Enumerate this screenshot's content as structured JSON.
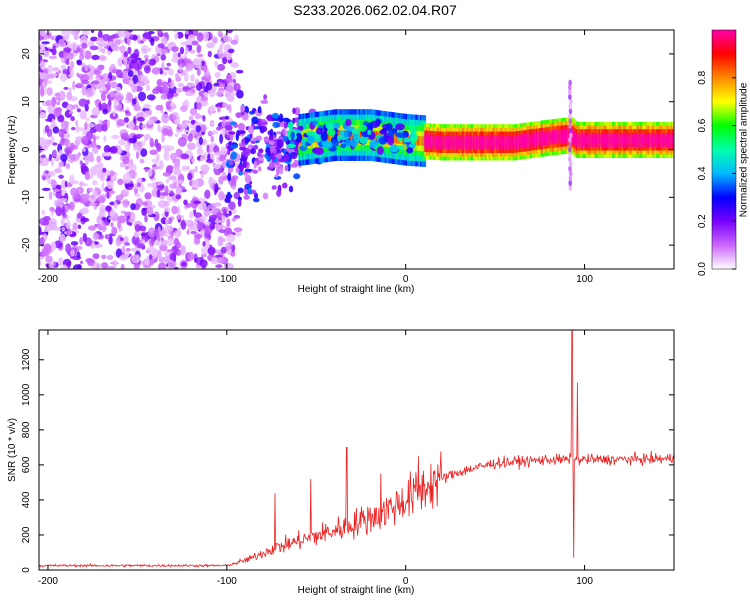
{
  "title": "S233.2026.062.02.04.R07",
  "chart_data": [
    {
      "type": "heatmap",
      "name": "spectrogram",
      "xlabel": "Height of straight line (km)",
      "ylabel": "Frequency (Hz)",
      "xlim": [
        -205,
        150
      ],
      "ylim": [
        -25,
        25
      ],
      "xticks": [
        -200,
        -100,
        0,
        100
      ],
      "yticks": [
        -20,
        -10,
        0,
        10,
        20
      ],
      "colorbar": {
        "label": "Normalized spectral amplitude",
        "range": [
          0.0,
          1.0
        ],
        "ticks": [
          0.0,
          0.2,
          0.4,
          0.6,
          0.8
        ],
        "tick_labels": [
          "0.0",
          "0.2",
          "0.4",
          "0.6",
          "0.8"
        ],
        "colors": [
          "#ffffff",
          "#cc66ff",
          "#7700ff",
          "#0000ff",
          "#00bbff",
          "#00ffaa",
          "#00ff00",
          "#ffff00",
          "#ff8800",
          "#ff0000",
          "#ff00aa"
        ]
      },
      "band_centerline": [
        {
          "x": -85,
          "freq": 0
        },
        {
          "x": -60,
          "freq": 2
        },
        {
          "x": -40,
          "freq": 3
        },
        {
          "x": -20,
          "freq": 3
        },
        {
          "x": 0,
          "freq": 2
        },
        {
          "x": 20,
          "freq": 1.5
        },
        {
          "x": 60,
          "freq": 1.5
        },
        {
          "x": 80,
          "freq": 2.5
        },
        {
          "x": 92,
          "freq": 3
        },
        {
          "x": 95,
          "freq": 2
        },
        {
          "x": 150,
          "freq": 2
        }
      ]
    },
    {
      "type": "line",
      "name": "snr",
      "xlabel": "Height of straight line (km)",
      "ylabel": "SNR (10 * v/v)",
      "xlim": [
        -205,
        150
      ],
      "ylim": [
        0,
        1370
      ],
      "xticks": [
        -200,
        -100,
        0,
        100
      ],
      "yticks": [
        0,
        200,
        400,
        600,
        800,
        1000,
        1200
      ],
      "series": [
        {
          "name": "SNR",
          "color": "#ee2222",
          "trend": [
            {
              "x": -205,
              "y": 25
            },
            {
              "x": -100,
              "y": 25
            },
            {
              "x": -88,
              "y": 60
            },
            {
              "x": -75,
              "y": 120
            },
            {
              "x": -55,
              "y": 180
            },
            {
              "x": -35,
              "y": 240
            },
            {
              "x": -15,
              "y": 320
            },
            {
              "x": 0,
              "y": 400
            },
            {
              "x": 15,
              "y": 500
            },
            {
              "x": 30,
              "y": 560
            },
            {
              "x": 50,
              "y": 610
            },
            {
              "x": 80,
              "y": 630
            },
            {
              "x": 110,
              "y": 630
            },
            {
              "x": 150,
              "y": 635
            }
          ],
          "spikes": [
            {
              "x": -73,
              "y": 440
            },
            {
              "x": -53,
              "y": 520
            },
            {
              "x": -33,
              "y": 700
            },
            {
              "x": -14,
              "y": 550
            },
            {
              "x": 7,
              "y": 650
            },
            {
              "x": 93,
              "y": 1370
            },
            {
              "x": 94,
              "y": 70
            },
            {
              "x": 96,
              "y": 1070
            }
          ]
        }
      ]
    }
  ]
}
